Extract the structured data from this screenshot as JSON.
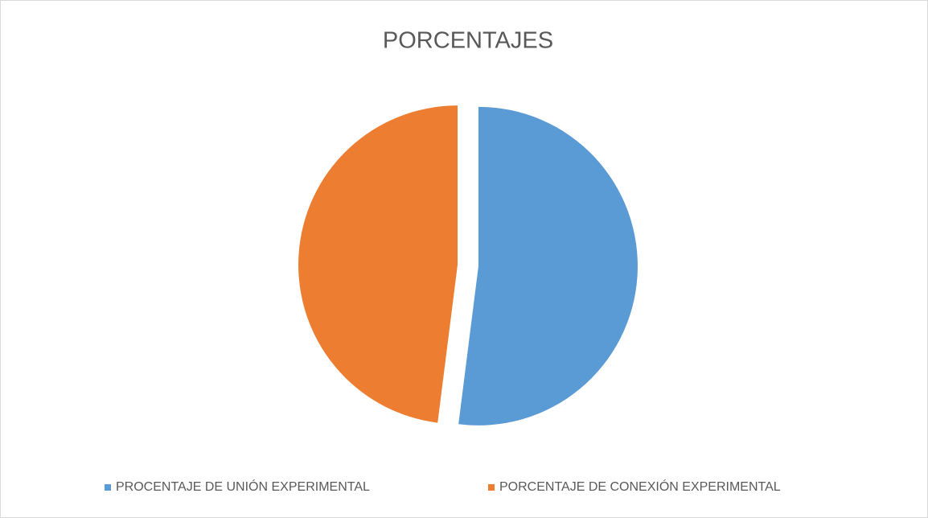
{
  "chart_data": {
    "type": "pie",
    "title": "PORCENTAJES",
    "categories": [
      "PROCENTAJE DE UNIÓN EXPERIMENTAL",
      "PORCENTAJE DE CONEXIÓN EXPERIMENTAL"
    ],
    "values": [
      52,
      48
    ],
    "colors": [
      "#5b9bd5",
      "#ed7d31"
    ],
    "legend": "bottom"
  }
}
